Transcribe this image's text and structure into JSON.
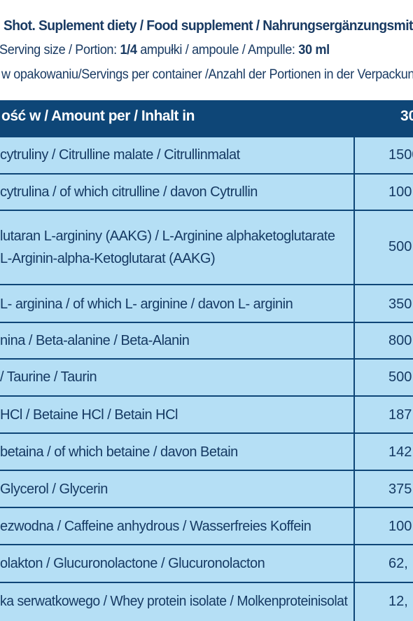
{
  "header": {
    "line1": "Shot. Suplement diety / Food supplement / Nahrungsergänzungsmit",
    "line2_pre": "Serving size / Portion: ",
    "line2_bold1": "1/4",
    "line2_mid": " ampułki / ampoule / Ampulle: ",
    "line2_bold2": "30 ml",
    "line3": " w opakowaniu/Servings per container /Anzahl der Portionen in der Verpackun"
  },
  "table": {
    "head_name": "ość w / Amount per / Inhalt in",
    "head_value": "30",
    "rows": [
      {
        "name": "cytruliny / Citrulline malate / Citrullinmalat",
        "value": "1500"
      },
      {
        "name": "cytrulina / of which citrulline / davon Cytrullin",
        "value": "100"
      },
      {
        "name": "lutaran L-argininy (AAKG) / L-Arginine alphaketoglutarate",
        "name2": "L-Arginin-alpha-Ketoglutarat (AAKG)",
        "value": "500"
      },
      {
        "name": "L- arginina / of which L- arginine / davon L- arginin",
        "value": "350"
      },
      {
        "name": "nina / Beta-alanine / Beta-Alanin",
        "value": "800"
      },
      {
        "name": "/ Taurine / Taurin",
        "value": "500"
      },
      {
        "name": "HCl / Betaine HCl / Betain HCl",
        "value": "187,"
      },
      {
        "name": "betaina / of which betaine / davon Betain",
        "value": "142,"
      },
      {
        "name": "Glycerol / Glycerin",
        "value": "375"
      },
      {
        "name": "ezwodna / Caffeine anhydrous / Wasserfreies Koffein",
        "value": "100"
      },
      {
        "name": "olakton / Glucuronolactone / Glucuronolacton",
        "value": "62,"
      },
      {
        "name": "ka serwatkowego / Whey protein isolate / Molkenproteinisolat",
        "value": "12,"
      }
    ]
  }
}
